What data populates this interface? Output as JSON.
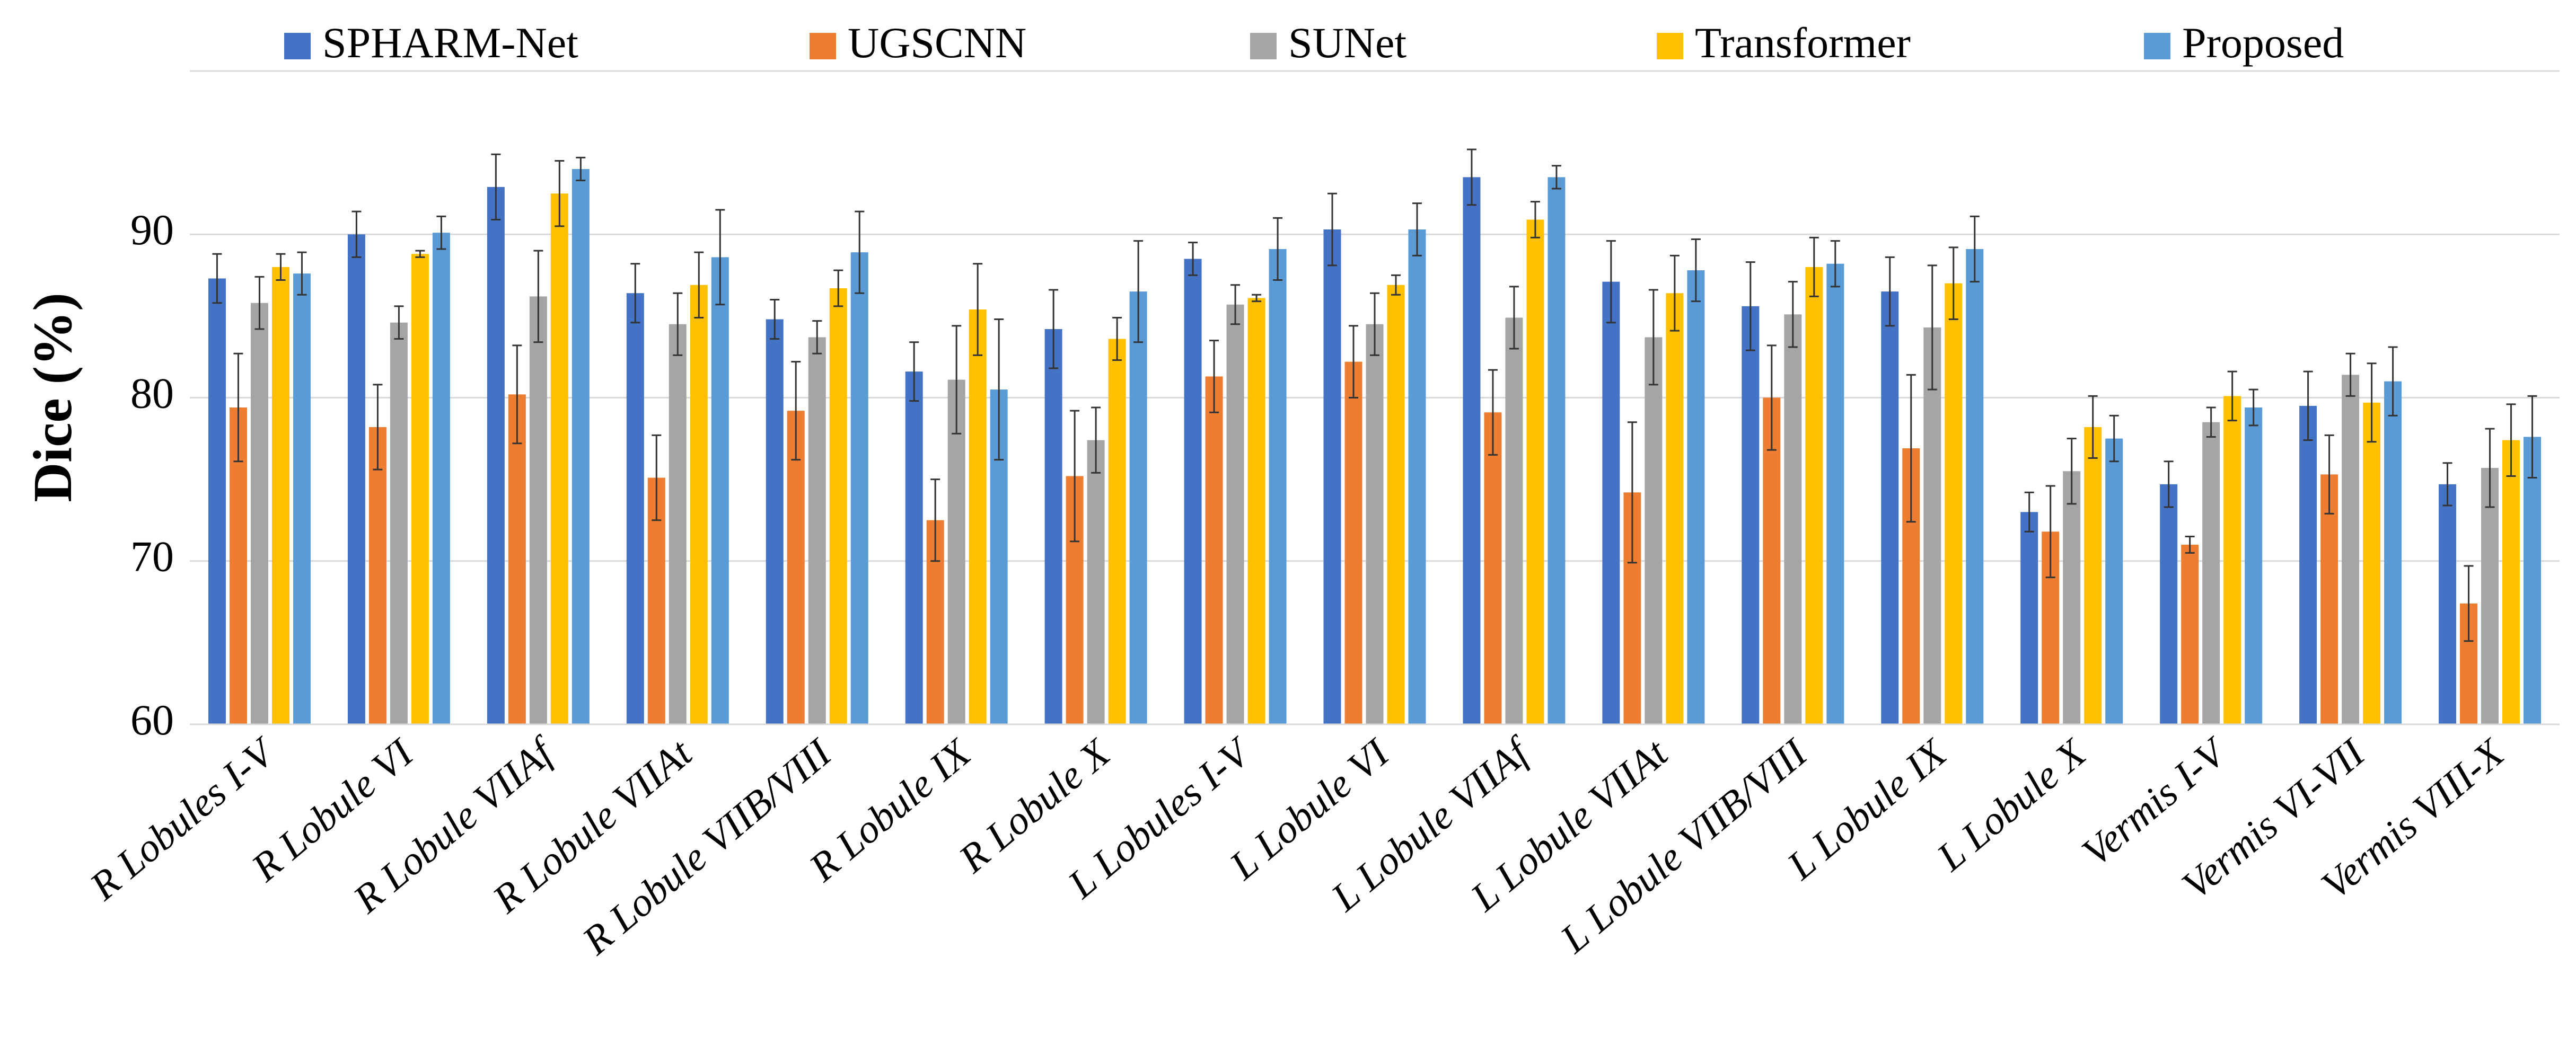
{
  "chart_data": {
    "type": "bar",
    "y_label": "Dice (%)",
    "categories": [
      "R Lobules I-V",
      "R Lobule VI",
      "R Lobule VIIAf",
      "R Lobule VIIAt",
      "R Lobule VIIB/VIII",
      "R Lobule IX",
      "R Lobule X",
      "L Lobules I-V",
      "L Lobule VI",
      "L Lobule VIIAf",
      "L Lobule VIIAt",
      "L Lobule VIIB/VIII",
      "L Lobule IX",
      "L Lobule X",
      "Vermis I-V",
      "Vermis VI-VII",
      "Vermis VIII-X"
    ],
    "series": [
      {
        "name": "SPHARM-Net",
        "color": "#4472c4",
        "values": [
          87.3,
          90.0,
          92.9,
          86.4,
          84.8,
          81.6,
          84.2,
          88.5,
          90.3,
          93.5,
          87.1,
          85.6,
          86.5,
          73.0,
          74.7,
          79.5,
          74.7
        ],
        "errors": [
          1.5,
          1.4,
          2.0,
          1.8,
          1.2,
          1.8,
          2.4,
          1.0,
          2.2,
          1.7,
          2.5,
          2.7,
          2.1,
          1.2,
          1.4,
          2.1,
          1.3
        ]
      },
      {
        "name": "UGSCNN",
        "color": "#ed7d31",
        "values": [
          79.4,
          78.2,
          80.2,
          75.1,
          79.2,
          72.5,
          75.2,
          81.3,
          82.2,
          79.1,
          74.2,
          80.0,
          76.9,
          71.8,
          71.0,
          75.3,
          67.4
        ],
        "errors": [
          3.3,
          2.6,
          3.0,
          2.6,
          3.0,
          2.5,
          4.0,
          2.2,
          2.2,
          2.6,
          4.3,
          3.2,
          4.5,
          2.8,
          0.5,
          2.4,
          2.3
        ]
      },
      {
        "name": "SUNet",
        "color": "#a5a5a5",
        "values": [
          85.8,
          84.6,
          86.2,
          84.5,
          83.7,
          81.1,
          77.4,
          85.7,
          84.5,
          84.9,
          83.7,
          85.1,
          84.3,
          75.5,
          78.5,
          81.4,
          75.7
        ],
        "errors": [
          1.6,
          1.0,
          2.8,
          1.9,
          1.0,
          3.3,
          2.0,
          1.2,
          1.9,
          1.9,
          2.9,
          2.0,
          3.8,
          2.0,
          0.9,
          1.3,
          2.4
        ]
      },
      {
        "name": "Transformer",
        "color": "#ffc000",
        "values": [
          88.0,
          88.8,
          92.5,
          86.9,
          86.7,
          85.4,
          83.6,
          86.1,
          86.9,
          90.9,
          86.4,
          88.0,
          87.0,
          78.2,
          80.1,
          79.7,
          77.4
        ],
        "errors": [
          0.8,
          0.2,
          2.0,
          2.0,
          1.1,
          2.8,
          1.3,
          0.2,
          0.6,
          1.1,
          2.3,
          1.8,
          2.2,
          1.9,
          1.5,
          2.4,
          2.2
        ]
      },
      {
        "name": "Proposed",
        "color": "#5b9bd5",
        "values": [
          87.6,
          90.1,
          94.0,
          88.6,
          88.9,
          80.5,
          86.5,
          89.1,
          90.3,
          93.5,
          87.8,
          88.2,
          89.1,
          77.5,
          79.4,
          81.0,
          77.6
        ],
        "errors": [
          1.3,
          1.0,
          0.7,
          2.9,
          2.5,
          4.3,
          3.1,
          1.9,
          1.6,
          0.7,
          1.9,
          1.4,
          2.0,
          1.4,
          1.1,
          2.1,
          2.5
        ]
      }
    ],
    "ylim": [
      60,
      100
    ],
    "yticks": [
      60,
      70,
      80,
      90
    ],
    "grid": true
  }
}
